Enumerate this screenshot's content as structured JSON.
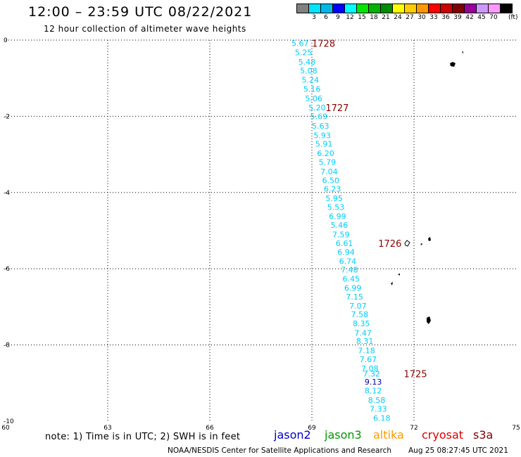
{
  "header": {
    "title": "12:00 – 23:59 UTC 08/22/2021",
    "subtitle": "12 hour collection of altimeter wave heights"
  },
  "legend": {
    "colors": [
      "#808080",
      "#00e5ff",
      "#00b8e6",
      "#0000ff",
      "#00ffff",
      "#00e600",
      "#00b300",
      "#008c00",
      "#ffff00",
      "#ffcc00",
      "#ff9900",
      "#ff0000",
      "#cc0000",
      "#800000",
      "#990099",
      "#cc99ff",
      "#ff99ff",
      "#000000"
    ],
    "labels": [
      "3",
      "6",
      "9",
      "12",
      "15",
      "18",
      "21",
      "24",
      "27",
      "30",
      "33",
      "36",
      "39",
      "42",
      "45",
      "70"
    ],
    "unit": "(ft)"
  },
  "map": {
    "x_ticks": [
      "60",
      "63",
      "66",
      "69",
      "72",
      "75"
    ],
    "y_ticks": [
      "0",
      "-2",
      "-4",
      "-6",
      "-8",
      "-10"
    ],
    "lon_range": [
      60,
      75
    ],
    "lat_range": [
      -10,
      0
    ],
    "data_color": "#00ccff",
    "highlight_color": "#000099",
    "time_label_color": "#8b0000"
  },
  "track": [
    {
      "lon": 68.4,
      "lat": -0.08,
      "value": "5.67"
    },
    {
      "lon": 68.5,
      "lat": -0.32,
      "value": "5.25"
    },
    {
      "lon": 68.6,
      "lat": -0.57,
      "value": "5.48"
    },
    {
      "lon": 68.65,
      "lat": -0.8,
      "value": "5.08"
    },
    {
      "lon": 68.7,
      "lat": -1.04,
      "value": "5.24"
    },
    {
      "lon": 68.75,
      "lat": -1.28,
      "value": "5.16"
    },
    {
      "lon": 68.8,
      "lat": -1.53,
      "value": "5.06"
    },
    {
      "lon": 68.9,
      "lat": -1.77,
      "value": "5.20"
    },
    {
      "lon": 68.95,
      "lat": -2.0,
      "value": "5.69"
    },
    {
      "lon": 69.0,
      "lat": -2.25,
      "value": "5.63"
    },
    {
      "lon": 69.05,
      "lat": -2.5,
      "value": "5.93"
    },
    {
      "lon": 69.1,
      "lat": -2.72,
      "value": "5.91"
    },
    {
      "lon": 69.15,
      "lat": -2.97,
      "value": "6.20"
    },
    {
      "lon": 69.2,
      "lat": -3.2,
      "value": "5.79"
    },
    {
      "lon": 69.25,
      "lat": -3.45,
      "value": "7.04"
    },
    {
      "lon": 69.3,
      "lat": -3.68,
      "value": "6.50"
    },
    {
      "lon": 69.35,
      "lat": -3.9,
      "value": "6.23"
    },
    {
      "lon": 69.4,
      "lat": -4.15,
      "value": "5.95"
    },
    {
      "lon": 69.45,
      "lat": -4.38,
      "value": "5.53"
    },
    {
      "lon": 69.5,
      "lat": -4.62,
      "value": "6.99"
    },
    {
      "lon": 69.55,
      "lat": -4.85,
      "value": "5.46"
    },
    {
      "lon": 69.6,
      "lat": -5.1,
      "value": "7.59"
    },
    {
      "lon": 69.7,
      "lat": -5.33,
      "value": "6.61"
    },
    {
      "lon": 69.75,
      "lat": -5.56,
      "value": "6.94"
    },
    {
      "lon": 69.8,
      "lat": -5.8,
      "value": "6.74"
    },
    {
      "lon": 69.85,
      "lat": -6.02,
      "value": "7.48"
    },
    {
      "lon": 69.9,
      "lat": -6.26,
      "value": "6.45"
    },
    {
      "lon": 69.95,
      "lat": -6.5,
      "value": "6.99"
    },
    {
      "lon": 70.0,
      "lat": -6.73,
      "value": "7.15"
    },
    {
      "lon": 70.1,
      "lat": -6.97,
      "value": "7.07"
    },
    {
      "lon": 70.15,
      "lat": -7.2,
      "value": "7.58"
    },
    {
      "lon": 70.2,
      "lat": -7.44,
      "value": "8.35"
    },
    {
      "lon": 70.25,
      "lat": -7.68,
      "value": "7.47"
    },
    {
      "lon": 70.3,
      "lat": -7.9,
      "value": "8.31"
    },
    {
      "lon": 70.35,
      "lat": -8.15,
      "value": "7.18"
    },
    {
      "lon": 70.4,
      "lat": -8.38,
      "value": "7.67"
    },
    {
      "lon": 70.45,
      "lat": -8.62,
      "value": "7.08"
    },
    {
      "lon": 70.5,
      "lat": -8.75,
      "value": "7.32"
    },
    {
      "lon": 70.55,
      "lat": -8.97,
      "value": "9.13",
      "highlight": true
    },
    {
      "lon": 70.55,
      "lat": -9.2,
      "value": "8.12"
    },
    {
      "lon": 70.65,
      "lat": -9.45,
      "value": "8.58"
    },
    {
      "lon": 70.7,
      "lat": -9.68,
      "value": "7.33"
    },
    {
      "lon": 70.8,
      "lat": -9.92,
      "value": "6.18"
    }
  ],
  "time_labels": [
    {
      "lon": 69.0,
      "lat": -0.08,
      "text": "1728"
    },
    {
      "lon": 69.4,
      "lat": -1.77,
      "text": "1727"
    },
    {
      "lon": 70.95,
      "lat": -5.33,
      "text": "1726"
    },
    {
      "lon": 71.7,
      "lat": -8.75,
      "text": "1725"
    }
  ],
  "footer": {
    "note": "note: 1) Time is in UTC; 2) SWH is in feet",
    "satellites": [
      {
        "name": "jason2",
        "color": "#0000cc"
      },
      {
        "name": "jason3",
        "color": "#009900"
      },
      {
        "name": "altika",
        "color": "#ff9900"
      },
      {
        "name": "cryosat",
        "color": "#dd0000"
      },
      {
        "name": "s3a",
        "color": "#800000"
      }
    ],
    "credit": "NOAA/NESDIS Center for Satellite Applications and Research",
    "timestamp": "Aug 25 08:27:45 UTC 2021"
  }
}
